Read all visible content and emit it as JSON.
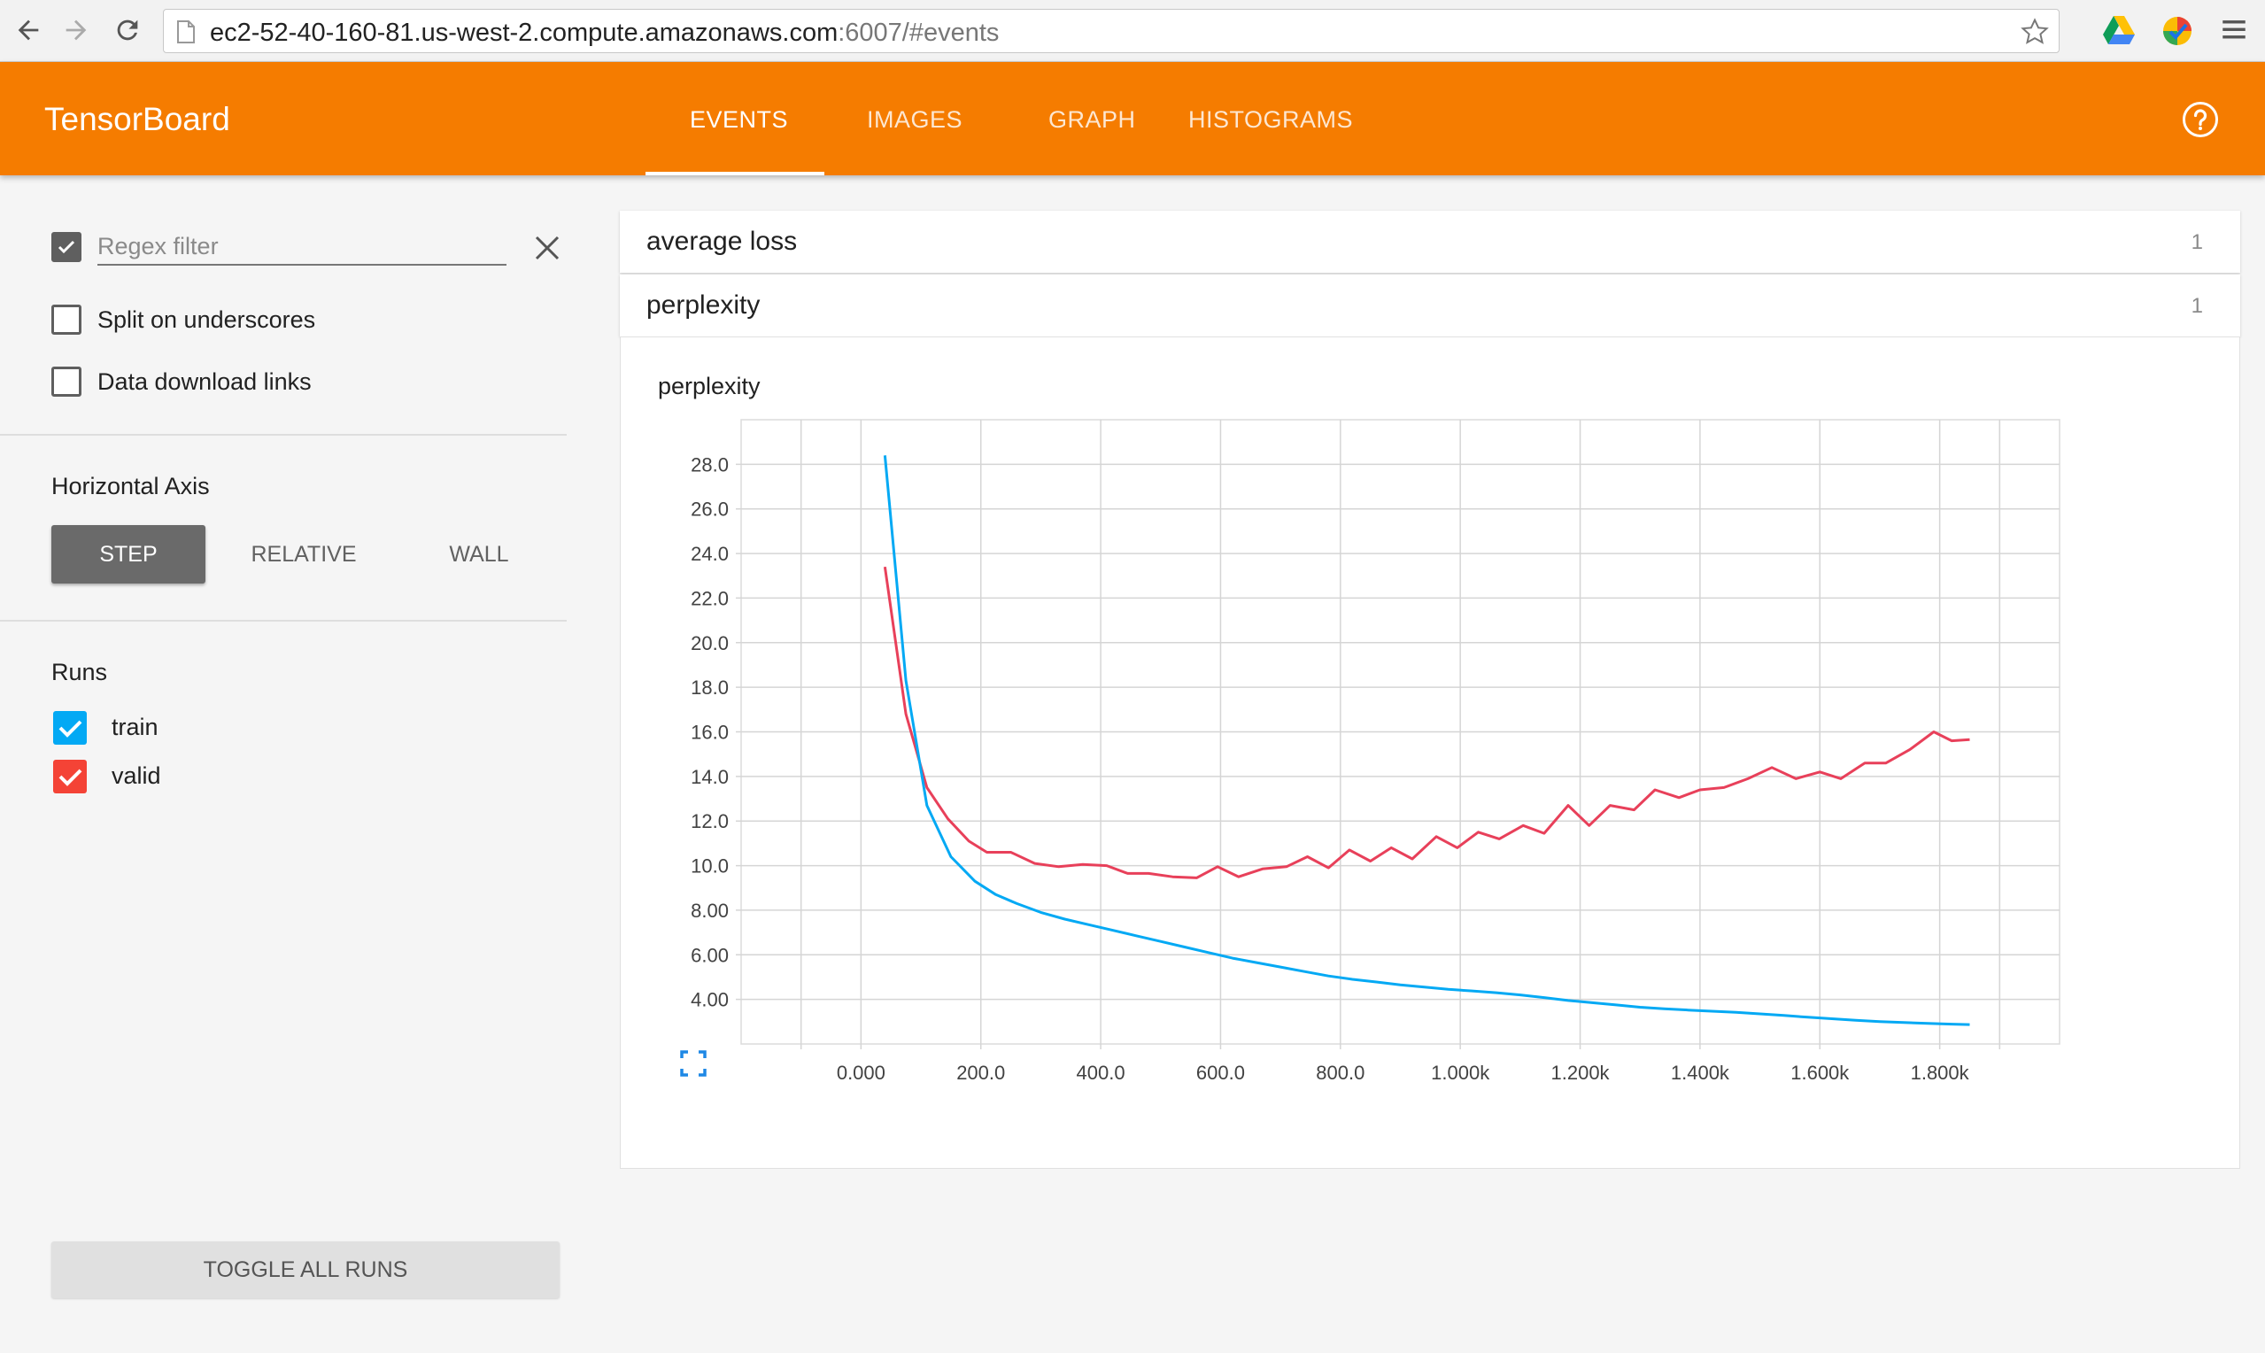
{
  "browser": {
    "url_main": "ec2-52-40-160-81.us-west-2.compute.amazonaws.com",
    "url_rest": ":6007/#events"
  },
  "header": {
    "title": "TensorBoard",
    "tabs": [
      {
        "label": "EVENTS",
        "active": true
      },
      {
        "label": "IMAGES",
        "active": false
      },
      {
        "label": "GRAPH",
        "active": false
      },
      {
        "label": "HISTOGRAMS",
        "active": false
      }
    ],
    "accent_color": "#f57c00"
  },
  "sidebar": {
    "regex_placeholder": "Regex filter",
    "regex_checked": true,
    "options": [
      {
        "label": "Split on underscores",
        "checked": false
      },
      {
        "label": "Data download links",
        "checked": false
      }
    ],
    "horizontal_axis_title": "Horizontal Axis",
    "axis_buttons": [
      {
        "label": "STEP",
        "active": true
      },
      {
        "label": "RELATIVE",
        "active": false
      },
      {
        "label": "WALL",
        "active": false
      }
    ],
    "runs_title": "Runs",
    "runs": [
      {
        "label": "train",
        "color": "#03a9f4",
        "checked": true
      },
      {
        "label": "valid",
        "color": "#f44336",
        "checked": true
      }
    ],
    "toggle_label": "TOGGLE ALL RUNS"
  },
  "categories": [
    {
      "name": "average loss",
      "count": "1"
    },
    {
      "name": "perplexity",
      "count": "1"
    }
  ],
  "chart_data": {
    "type": "line",
    "title": "perplexity",
    "xlabel": "",
    "ylabel": "",
    "xlim": [
      -200,
      2000
    ],
    "ylim": [
      2.0,
      30.0
    ],
    "x_ticks": [
      0,
      200,
      400,
      600,
      800,
      1000,
      1200,
      1400,
      1600,
      1800
    ],
    "x_tick_labels": [
      "0.000",
      "200.0",
      "400.0",
      "600.0",
      "800.0",
      "1.000k",
      "1.200k",
      "1.400k",
      "1.600k",
      "1.800k"
    ],
    "y_ticks": [
      4,
      6,
      8,
      10,
      12,
      14,
      16,
      18,
      20,
      22,
      24,
      26,
      28
    ],
    "y_tick_labels": [
      "4.00",
      "6.00",
      "8.00",
      "10.0",
      "12.0",
      "14.0",
      "16.0",
      "18.0",
      "20.0",
      "22.0",
      "24.0",
      "26.0",
      "28.0"
    ],
    "grid": true,
    "series": [
      {
        "name": "train",
        "color": "#03a9f4",
        "x": [
          40,
          75,
          110,
          150,
          190,
          225,
          260,
          300,
          340,
          380,
          420,
          460,
          500,
          540,
          580,
          620,
          660,
          700,
          740,
          780,
          820,
          860,
          900,
          940,
          980,
          1020,
          1060,
          1100,
          1140,
          1180,
          1220,
          1260,
          1300,
          1340,
          1380,
          1420,
          1460,
          1500,
          1540,
          1580,
          1620,
          1660,
          1700,
          1740,
          1780,
          1820,
          1850
        ],
        "y": [
          28.4,
          18.3,
          12.7,
          10.4,
          9.3,
          8.7,
          8.3,
          7.9,
          7.6,
          7.35,
          7.1,
          6.85,
          6.6,
          6.35,
          6.1,
          5.85,
          5.65,
          5.45,
          5.25,
          5.05,
          4.9,
          4.78,
          4.65,
          4.55,
          4.45,
          4.38,
          4.3,
          4.2,
          4.08,
          3.95,
          3.85,
          3.75,
          3.65,
          3.58,
          3.52,
          3.47,
          3.42,
          3.35,
          3.28,
          3.2,
          3.13,
          3.06,
          3.0,
          2.96,
          2.92,
          2.89,
          2.87
        ]
      },
      {
        "name": "valid",
        "color": "#f44336",
        "x": [
          40,
          75,
          110,
          145,
          180,
          210,
          250,
          290,
          330,
          370,
          410,
          445,
          480,
          520,
          560,
          595,
          630,
          670,
          710,
          745,
          780,
          815,
          850,
          885,
          920,
          960,
          995,
          1030,
          1065,
          1105,
          1140,
          1180,
          1215,
          1250,
          1290,
          1325,
          1365,
          1400,
          1440,
          1480,
          1520,
          1560,
          1600,
          1635,
          1675,
          1710,
          1750,
          1790,
          1820,
          1850
        ],
        "y": [
          23.4,
          16.8,
          13.5,
          12.1,
          11.1,
          10.6,
          10.6,
          10.1,
          9.95,
          10.05,
          10.0,
          9.65,
          9.65,
          9.5,
          9.45,
          9.95,
          9.5,
          9.85,
          9.95,
          10.4,
          9.9,
          10.7,
          10.2,
          10.8,
          10.3,
          11.3,
          10.8,
          11.5,
          11.2,
          11.8,
          11.45,
          12.7,
          11.8,
          12.7,
          12.5,
          13.4,
          13.05,
          13.4,
          13.5,
          13.9,
          14.4,
          13.9,
          14.2,
          13.9,
          14.6,
          14.6,
          15.2,
          16.0,
          15.6,
          15.65
        ]
      }
    ]
  }
}
